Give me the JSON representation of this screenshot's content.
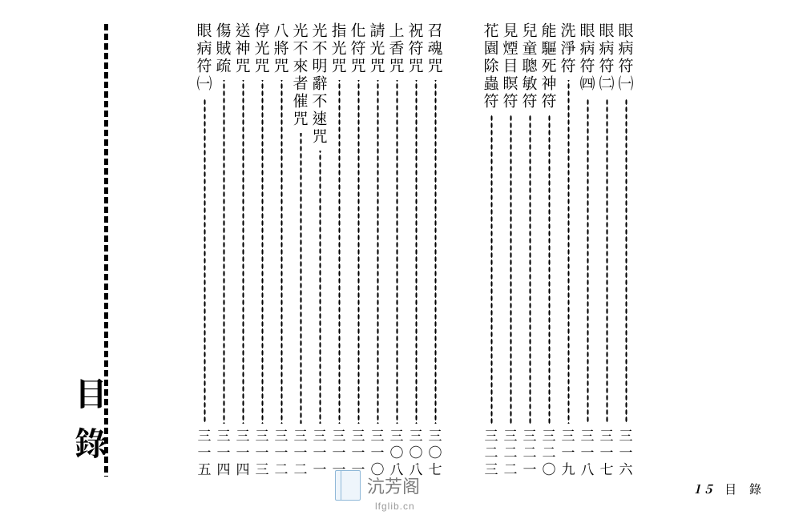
{
  "document": {
    "title": "目錄",
    "background_color": "#ffffff",
    "text_color": "#000000",
    "title_fontsize": 40,
    "entry_fontsize": 19,
    "page_fontsize": 17
  },
  "columns": [
    {
      "entries": [
        {
          "title": "召魂咒",
          "page": "三〇七"
        },
        {
          "title": "祝符咒",
          "page": "三〇八"
        },
        {
          "title": "上香咒",
          "page": "三〇八"
        },
        {
          "title": "請光咒",
          "page": "三一〇"
        },
        {
          "title": "化符咒",
          "page": "三一一"
        },
        {
          "title": "指光咒",
          "page": "三一一"
        },
        {
          "title": "光不明辭不速咒",
          "page": "三一一"
        },
        {
          "title": "光不來者催咒",
          "page": "三一二"
        },
        {
          "title": "八將咒",
          "page": "三一二"
        },
        {
          "title": "停光咒",
          "page": "三一三"
        },
        {
          "title": "送神咒",
          "page": "三一四"
        },
        {
          "title": "傷賊疏",
          "page": "三一四"
        },
        {
          "title": "眼病符㈠",
          "page": "三一五"
        }
      ]
    },
    {
      "entries": [
        {
          "title": "眼病符㈠",
          "page": "三一六"
        },
        {
          "title": "眼病符㈡",
          "page": "三一七"
        },
        {
          "title": "眼病符㈣",
          "page": "三一八"
        },
        {
          "title": "洗淨符",
          "page": "三一九"
        },
        {
          "title": "能驅死神符",
          "page": "三二〇"
        },
        {
          "title": "兒童聰敏符",
          "page": "三二一"
        },
        {
          "title": "見煙目瞑符",
          "page": "三二二"
        },
        {
          "title": "花園除蟲符",
          "page": "三二三"
        }
      ]
    }
  ],
  "footer": {
    "page_number": "15",
    "label": "目 錄"
  },
  "watermark": {
    "text": "沆芳阁",
    "url": "lfglib.cn",
    "color": "#7d7d7d"
  }
}
